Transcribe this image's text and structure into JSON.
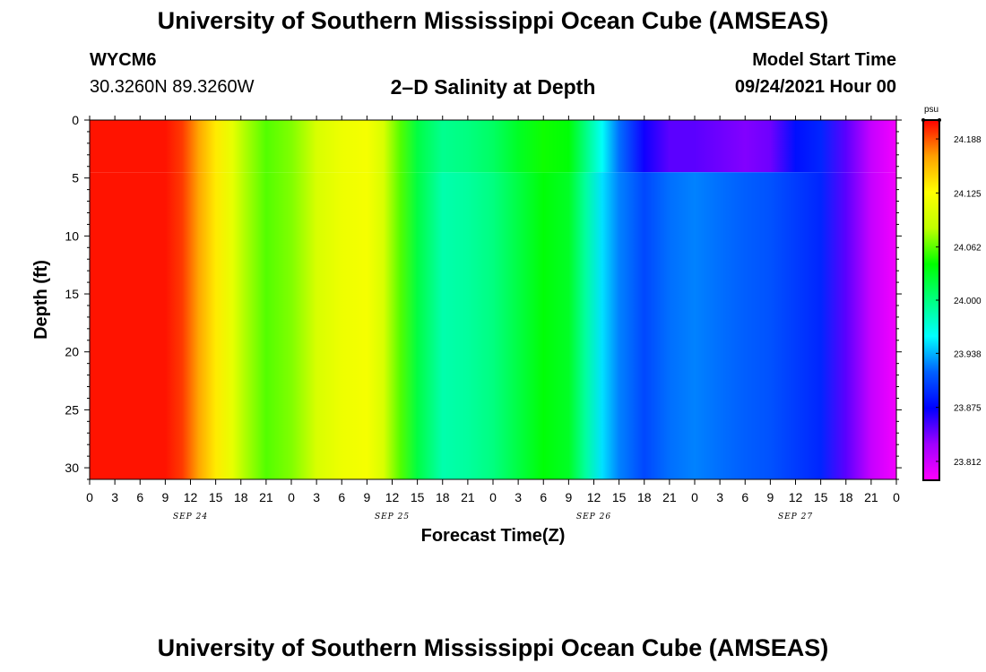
{
  "page": {
    "title_top": "University of Southern Mississippi Ocean Cube (AMSEAS)",
    "title_bottom": "University of Southern Mississippi Ocean Cube (AMSEAS)",
    "station_id": "WYCM6",
    "station_coords": "30.3260N  89.3260W",
    "plot_title": "2–D Salinity at Depth",
    "model_start_label": "Model Start Time",
    "model_start_value": "09/24/2021 Hour 00"
  },
  "chart_data": {
    "type": "heatmap",
    "title": "2–D Salinity at Depth",
    "xlabel": "Forecast Time(Z)",
    "ylabel": "Depth (ft)",
    "x_ticks": [
      "0",
      "3",
      "6",
      "9",
      "12",
      "15",
      "18",
      "21",
      "0",
      "3",
      "6",
      "9",
      "12",
      "15",
      "18",
      "21",
      "0",
      "3",
      "6",
      "9",
      "12",
      "15",
      "18",
      "21",
      "0",
      "3",
      "6",
      "9",
      "12",
      "15",
      "18",
      "21",
      "0"
    ],
    "x_range_hours": [
      0,
      96
    ],
    "date_labels": [
      {
        "label": "SEP 24",
        "hour": 12
      },
      {
        "label": "SEP 25",
        "hour": 36
      },
      {
        "label": "SEP 26",
        "hour": 60
      },
      {
        "label": "SEP 27",
        "hour": 84
      }
    ],
    "y_ticks": [
      0,
      5,
      10,
      15,
      20,
      25,
      30
    ],
    "y_range": [
      0,
      31
    ],
    "y_inverted": true,
    "colorbar": {
      "unit": "psu",
      "ticks": [
        "24.188",
        "24.125",
        "24.062",
        "24.000",
        "23.938",
        "23.875",
        "23.812"
      ],
      "range": [
        23.79,
        24.21
      ],
      "colors": [
        "#ff00ff",
        "#a000ff",
        "#0000ff",
        "#0060ff",
        "#00ffff",
        "#00ff80",
        "#00ff00",
        "#c0ff00",
        "#ffff00",
        "#ffa000",
        "#ff0000"
      ]
    },
    "time_series_upper": [
      {
        "hour": 0,
        "value": 24.205
      },
      {
        "hour": 9,
        "value": 24.205
      },
      {
        "hour": 11,
        "value": 24.195
      },
      {
        "hour": 13,
        "value": 24.165
      },
      {
        "hour": 15,
        "value": 24.135
      },
      {
        "hour": 17,
        "value": 24.11
      },
      {
        "hour": 18.5,
        "value": 24.08
      },
      {
        "hour": 21,
        "value": 24.06
      },
      {
        "hour": 24,
        "value": 24.07
      },
      {
        "hour": 27,
        "value": 24.1
      },
      {
        "hour": 30,
        "value": 24.115
      },
      {
        "hour": 33,
        "value": 24.12
      },
      {
        "hour": 35,
        "value": 24.1
      },
      {
        "hour": 37,
        "value": 24.06
      },
      {
        "hour": 39,
        "value": 24.02
      },
      {
        "hour": 42,
        "value": 23.995
      },
      {
        "hour": 45,
        "value": 24.0
      },
      {
        "hour": 48,
        "value": 24.01
      },
      {
        "hour": 51,
        "value": 24.03
      },
      {
        "hour": 54,
        "value": 24.045
      },
      {
        "hour": 57,
        "value": 24.04
      },
      {
        "hour": 59,
        "value": 24.0
      },
      {
        "hour": 61,
        "value": 23.96
      },
      {
        "hour": 63,
        "value": 23.92
      },
      {
        "hour": 66,
        "value": 23.87
      },
      {
        "hour": 69,
        "value": 23.85
      },
      {
        "hour": 72,
        "value": 23.85
      },
      {
        "hour": 75,
        "value": 23.845
      },
      {
        "hour": 78,
        "value": 23.84
      },
      {
        "hour": 81,
        "value": 23.845
      },
      {
        "hour": 84,
        "value": 23.88
      },
      {
        "hour": 87,
        "value": 23.89
      },
      {
        "hour": 90,
        "value": 23.85
      },
      {
        "hour": 93,
        "value": 23.815
      },
      {
        "hour": 96,
        "value": 23.795
      }
    ],
    "time_series_lower": [
      {
        "hour": 0,
        "value": 24.205
      },
      {
        "hour": 9,
        "value": 24.205
      },
      {
        "hour": 11,
        "value": 24.195
      },
      {
        "hour": 13,
        "value": 24.165
      },
      {
        "hour": 15,
        "value": 24.135
      },
      {
        "hour": 17,
        "value": 24.11
      },
      {
        "hour": 18.5,
        "value": 24.08
      },
      {
        "hour": 21,
        "value": 24.06
      },
      {
        "hour": 24,
        "value": 24.07
      },
      {
        "hour": 27,
        "value": 24.1
      },
      {
        "hour": 30,
        "value": 24.115
      },
      {
        "hour": 33,
        "value": 24.12
      },
      {
        "hour": 35,
        "value": 24.1
      },
      {
        "hour": 37,
        "value": 24.06
      },
      {
        "hour": 39,
        "value": 24.02
      },
      {
        "hour": 42,
        "value": 23.985
      },
      {
        "hour": 45,
        "value": 23.99
      },
      {
        "hour": 48,
        "value": 24.0
      },
      {
        "hour": 51,
        "value": 24.02
      },
      {
        "hour": 54,
        "value": 24.04
      },
      {
        "hour": 57,
        "value": 24.03
      },
      {
        "hour": 59,
        "value": 23.99
      },
      {
        "hour": 61,
        "value": 23.95
      },
      {
        "hour": 63,
        "value": 23.925
      },
      {
        "hour": 66,
        "value": 23.905
      },
      {
        "hour": 69,
        "value": 23.92
      },
      {
        "hour": 72,
        "value": 23.925
      },
      {
        "hour": 75,
        "value": 23.92
      },
      {
        "hour": 78,
        "value": 23.915
      },
      {
        "hour": 81,
        "value": 23.91
      },
      {
        "hour": 84,
        "value": 23.9
      },
      {
        "hour": 87,
        "value": 23.89
      },
      {
        "hour": 90,
        "value": 23.85
      },
      {
        "hour": 93,
        "value": 23.815
      },
      {
        "hour": 96,
        "value": 23.795
      }
    ]
  }
}
